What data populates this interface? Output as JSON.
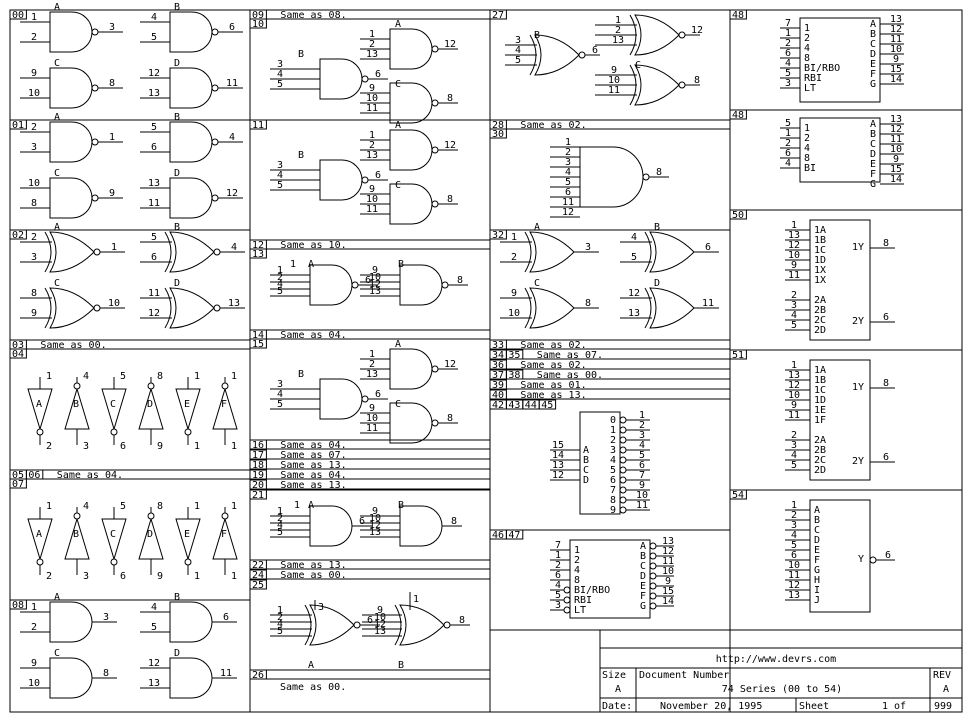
{
  "sections": {
    "s00": {
      "id": "00",
      "gates": [
        "A",
        "B",
        "C",
        "D"
      ],
      "pins": [
        "1",
        "2",
        "3",
        "4",
        "5",
        "6",
        "9",
        "10",
        "8",
        "12",
        "13",
        "11"
      ]
    },
    "s01": {
      "id": "01",
      "gates": [
        "A",
        "B",
        "C",
        "D"
      ],
      "pins": [
        "2",
        "3",
        "1",
        "5",
        "6",
        "4",
        "10",
        "8",
        "9",
        "13",
        "11",
        "12"
      ]
    },
    "s02": {
      "id": "02",
      "gates": [
        "A",
        "B",
        "C",
        "D"
      ],
      "pins": [
        "2",
        "3",
        "1",
        "5",
        "6",
        "4",
        "8",
        "9",
        "10",
        "11",
        "12",
        "13"
      ]
    },
    "s03": {
      "id": "03",
      "note": "Same as 00."
    },
    "s04": {
      "id": "04",
      "gates": [
        "A",
        "B",
        "C",
        "D",
        "E",
        "F"
      ],
      "top_pins": [
        "1",
        "4",
        "5",
        "8",
        "1\n1",
        "1\n2"
      ],
      "bot_pins": [
        "2",
        "3",
        "6",
        "9",
        "1\n0",
        "1\n3"
      ]
    },
    "s05": {
      "id": "05",
      "id2": "06",
      "note": "Same as 04."
    },
    "s07": {
      "id": "07",
      "gates": [
        "A",
        "B",
        "C",
        "D",
        "E",
        "F"
      ]
    },
    "s08": {
      "id": "08",
      "gates": [
        "A",
        "B",
        "C",
        "D"
      ],
      "pins": [
        "1",
        "2",
        "3",
        "4",
        "5",
        "6",
        "9",
        "10",
        "8",
        "12",
        "13",
        "11"
      ]
    },
    "s09": {
      "id": "09",
      "note": "Same as 08."
    },
    "s10": {
      "id": "10"
    },
    "s11": {
      "id": "11"
    },
    "s12": {
      "id": "12",
      "note": "Same as 10."
    },
    "s13": {
      "id": "13"
    },
    "s14": {
      "id": "14",
      "note": "Same as 04."
    },
    "s15": {
      "id": "15"
    },
    "s16_20": [
      {
        "id": "16",
        "note": "Same as 04."
      },
      {
        "id": "17",
        "note": "Same as 07."
      },
      {
        "id": "18",
        "note": "Same as 13."
      },
      {
        "id": "19",
        "note": "Same as 04."
      },
      {
        "id": "20",
        "note": "Same as 13."
      }
    ],
    "s21": {
      "id": "21"
    },
    "s22_24": [
      {
        "id": "22",
        "note": "Same as 13."
      },
      {
        "id": "24",
        "note": "Same as 00."
      }
    ],
    "s25": {
      "id": "25"
    },
    "s26": {
      "id": "26",
      "note": "Same as 00."
    },
    "s27": {
      "id": "27"
    },
    "s28": {
      "id": "28",
      "note": "Same as 02."
    },
    "s30": {
      "id": "30",
      "inputs": [
        "1",
        "2",
        "3",
        "4",
        "5",
        "6",
        "11",
        "12"
      ],
      "output": "8"
    },
    "s32": {
      "id": "32"
    },
    "s33_40": [
      {
        "id": "33",
        "note": "Same as 02."
      },
      {
        "id": "34",
        "id2": "35",
        "note": "Same as 07."
      },
      {
        "id": "36",
        "note": "Same as 02."
      },
      {
        "id": "37",
        "id2": "38",
        "note": "Same as 00."
      },
      {
        "id": "39",
        "note": "Same as 01."
      },
      {
        "id": "40",
        "note": "Same as 13."
      }
    ],
    "s42": {
      "ids": [
        "42",
        "43",
        "44",
        "45"
      ],
      "in_pins": [
        "15",
        "14",
        "13",
        "12"
      ],
      "in_labels": [
        "A",
        "B",
        "C",
        "D"
      ],
      "out_labels": [
        "0",
        "1",
        "2",
        "3",
        "4",
        "5",
        "6",
        "7",
        "8",
        "9"
      ],
      "out_pins": [
        "1",
        "2",
        "3",
        "4",
        "5",
        "6",
        "7",
        "9",
        "10",
        "11"
      ]
    },
    "s46": {
      "ids": [
        "46",
        "47"
      ]
    },
    "s48a": {
      "id": "48",
      "left_labels": [
        "1",
        "2",
        "4",
        "8",
        "BI/RBO",
        "RBI",
        "LT"
      ],
      "left_pins": [
        "7",
        "1",
        "2",
        "6",
        "4",
        "5",
        "3"
      ],
      "right_labels": [
        "A",
        "B",
        "C",
        "D",
        "E",
        "F",
        "G"
      ],
      "right_pins": [
        "13",
        "12",
        "11",
        "10",
        "9",
        "15",
        "14"
      ]
    },
    "s48b": {
      "id": "48",
      "left_labels": [
        "1",
        "2",
        "4",
        "8",
        "BI"
      ],
      "left_pins": [
        "5",
        "1",
        "2",
        "6",
        "4"
      ],
      "right_labels": [
        "A",
        "B",
        "C",
        "D",
        "E",
        "F",
        "G"
      ],
      "right_pins": [
        "13",
        "12",
        "11",
        "10",
        "9",
        "15",
        "14"
      ]
    },
    "s50": {
      "id": "50",
      "in_labels": [
        "1A",
        "1B",
        "1C",
        "1D",
        "1X",
        "1X",
        "2A",
        "2B",
        "2C",
        "2D"
      ],
      "in_pins": [
        "1",
        "13",
        "12",
        "10",
        "9",
        "11",
        "2",
        "3",
        "4",
        "5"
      ],
      "out1": "1Y",
      "out1_pin": "8",
      "out2": "2Y",
      "out2_pin": "6"
    },
    "s51": {
      "id": "51",
      "in_labels": [
        "1A",
        "1B",
        "1C",
        "1D",
        "1E",
        "1F",
        "2A",
        "2B",
        "2C",
        "2D"
      ],
      "in_pins": [
        "1",
        "13",
        "12",
        "10",
        "9",
        "11",
        "2",
        "3",
        "4",
        "5"
      ],
      "out1": "1Y",
      "out1_pin": "8",
      "out2": "2Y",
      "out2_pin": "6"
    },
    "s54": {
      "id": "54",
      "in_labels": [
        "A",
        "B",
        "C",
        "D",
        "E",
        "F",
        "G",
        "H",
        "I",
        "J"
      ],
      "in_pins": [
        "1",
        "2",
        "3",
        "4",
        "5",
        "6",
        "10",
        "11",
        "12",
        "13"
      ],
      "out": "Y",
      "out_pin": "6"
    }
  },
  "title_block": {
    "url": "http://www.devrs.com",
    "size_label": "Size",
    "size_value": "A",
    "docnum_label": "Document Number",
    "doc_title": "74 Series (00 to 54)",
    "rev_label": "REV",
    "rev_value": "A",
    "date_label": "Date:",
    "date_value": "November 20, 1995",
    "sheet_label": "Sheet",
    "sheet_value": "1",
    "of_label": "of",
    "sheets_total": "999"
  }
}
